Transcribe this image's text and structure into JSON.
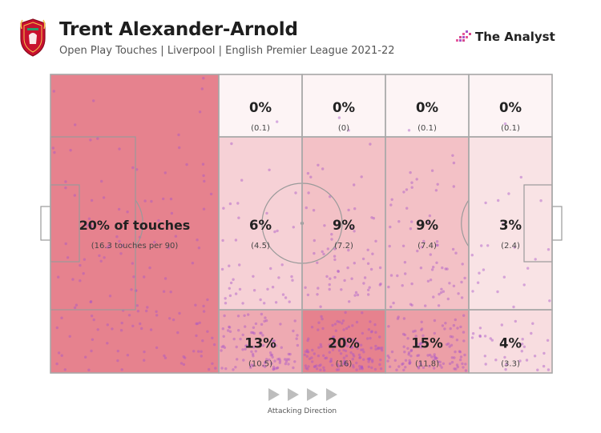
{
  "header": {
    "title": "Trent Alexander-Arnold",
    "subtitle": "Open Play Touches | Liverpool | English Premier League 2021-22",
    "brand": "The Analyst",
    "crest_icon": "liverpool-crest-icon",
    "brand_icon": "the-analyst-logo-icon"
  },
  "footer": {
    "direction_label": "Attacking Direction",
    "arrow_icon": "play-arrow-icon"
  },
  "colors": {
    "heat_base": "#e3717e",
    "dots": "#a855c8",
    "pitch_lines": "#9a9a9a",
    "zone_borders": "#a8a8a8"
  },
  "chart_data": {
    "type": "heatmap",
    "title": "Trent Alexander-Arnold",
    "subtitle": "Open Play Touches | Liverpool | English Premier League 2021-22",
    "attacking_direction": "left-to-right",
    "zones": [
      {
        "id": "left-large",
        "pct_label": "20% of touches",
        "detail_label": "(16.3 touches per 90)",
        "pct": 20,
        "per90": 16.3
      },
      {
        "id": "c1-top",
        "pct_label": "0%",
        "detail_label": "(0.1)",
        "pct": 0,
        "per90": 0.1
      },
      {
        "id": "c2-top",
        "pct_label": "0%",
        "detail_label": "(0)",
        "pct": 0,
        "per90": 0
      },
      {
        "id": "c3-top",
        "pct_label": "0%",
        "detail_label": "(0.1)",
        "pct": 0,
        "per90": 0.1
      },
      {
        "id": "c4-top",
        "pct_label": "0%",
        "detail_label": "(0.1)",
        "pct": 0,
        "per90": 0.1
      },
      {
        "id": "c1-mid",
        "pct_label": "6%",
        "detail_label": "(4.5)",
        "pct": 6,
        "per90": 4.5
      },
      {
        "id": "c2-mid",
        "pct_label": "9%",
        "detail_label": "(7.2)",
        "pct": 9,
        "per90": 7.2
      },
      {
        "id": "c3-mid",
        "pct_label": "9%",
        "detail_label": "(7.4)",
        "pct": 9,
        "per90": 7.4
      },
      {
        "id": "c4-mid",
        "pct_label": "3%",
        "detail_label": "(2.4)",
        "pct": 3,
        "per90": 2.4
      },
      {
        "id": "c1-bot",
        "pct_label": "13%",
        "detail_label": "(10.5)",
        "pct": 13,
        "per90": 10.5
      },
      {
        "id": "c2-bot",
        "pct_label": "20%",
        "detail_label": "(16)",
        "pct": 20,
        "per90": 16
      },
      {
        "id": "c3-bot",
        "pct_label": "15%",
        "detail_label": "(11.8)",
        "pct": 15,
        "per90": 11.8
      },
      {
        "id": "c4-bot",
        "pct_label": "4%",
        "detail_label": "(3.3)",
        "pct": 4,
        "per90": 3.3
      }
    ]
  }
}
